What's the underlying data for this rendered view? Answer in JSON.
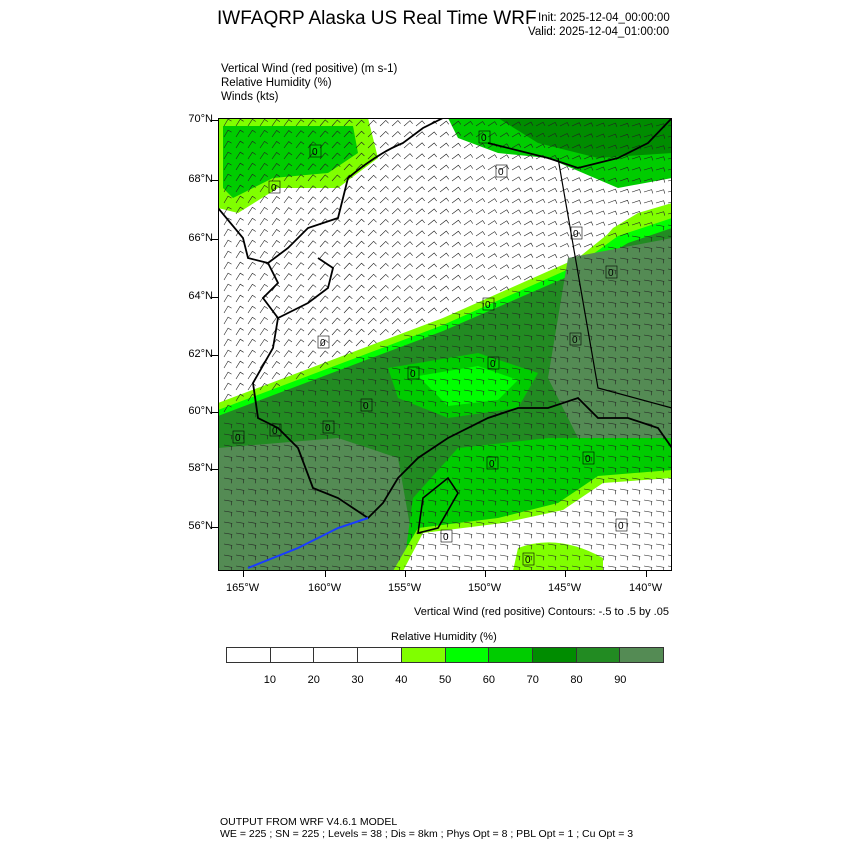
{
  "header": {
    "title": "IWFAQRP Alaska US Real Time WRF",
    "init": "Init: 2025-12-04_00:00:00",
    "valid": "Valid: 2025-12-04_01:00:00"
  },
  "fields": [
    "Vertical Wind (red positive)   (m s-1)",
    "Relative Humidity   (%)",
    "Winds   (kts)"
  ],
  "map": {
    "lat_ticks": [
      "70°N",
      "68°N",
      "66°N",
      "64°N",
      "62°N",
      "60°N",
      "58°N",
      "56°N"
    ],
    "lon_ticks": [
      "165°W",
      "160°W",
      "155°W",
      "150°W",
      "145°W",
      "140°W"
    ],
    "contour_label": "0",
    "contour_color": "#ffffff",
    "coastline_color": "#000000"
  },
  "contour_info": "Vertical Wind (red positive) Contours: -.5 to .5 by .05",
  "colorbar": {
    "title": "Relative Humidity  (%)",
    "labels": [
      "10",
      "20",
      "30",
      "40",
      "50",
      "60",
      "70",
      "80",
      "90"
    ],
    "colors": [
      "#ffffff",
      "#ffffff",
      "#ffffff",
      "#ffffff",
      "#80ff00",
      "#00ff00",
      "#00cc00",
      "#008c00",
      "#228b22",
      "#548b54"
    ]
  },
  "footer": {
    "line1": "OUTPUT FROM WRF V4.6.1 MODEL",
    "line2": "WE = 225 ; SN = 225 ; Levels = 38 ; Dis = 8km ; Phys Opt = 8 ; PBL Opt = 1 ; Cu Opt = 3"
  }
}
